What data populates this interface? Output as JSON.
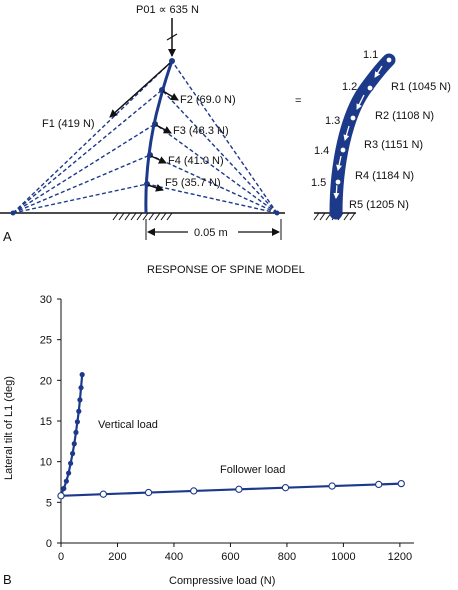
{
  "panel_a": {
    "panel_label": "A",
    "top_load": "P01 ∝ 635 N",
    "f1": "F1 (419 N)",
    "forces": [
      "F2 (69.0 N)",
      "F3 (48.3 N)",
      "F4 (41.0 N)",
      "F5 (35.7 N)"
    ],
    "equals": "=",
    "distance": "0.05 m",
    "levels": [
      "1.1",
      "1.2",
      "1.3",
      "1.4",
      "1.5"
    ],
    "reactions": [
      "R1 (1045 N)",
      "R2 (1108 N)",
      "R3 (1151 N)",
      "R4 (1184 N)",
      "R5 (1205 N)"
    ]
  },
  "panel_b": {
    "panel_label": "B",
    "title": "RESPONSE OF SPINE MODEL",
    "series_labels": {
      "vertical": "Vertical load",
      "follower": "Follower load"
    }
  },
  "colors": {
    "spine": "#1d3a8a",
    "axis": "#111111"
  },
  "chart_data": {
    "type": "line",
    "title": "RESPONSE OF SPINE MODEL",
    "xlabel": "Compressive load (N)",
    "ylabel": "Lateral tilt of L1 (deg)",
    "xlim": [
      0,
      1250
    ],
    "ylim": [
      0,
      30
    ],
    "xticks": [
      0,
      200,
      400,
      600,
      800,
      1000,
      1200
    ],
    "yticks": [
      0,
      5,
      10,
      15,
      20,
      25,
      30
    ],
    "grid": false,
    "series": [
      {
        "name": "Vertical load",
        "marker": "filled",
        "x": [
          0,
          10,
          19,
          27,
          34,
          41,
          47,
          53,
          58,
          63,
          67,
          71,
          75
        ],
        "y": [
          5.9,
          6.7,
          7.6,
          8.6,
          9.8,
          11.0,
          12.2,
          13.6,
          14.9,
          16.2,
          17.6,
          19.1,
          20.7
        ]
      },
      {
        "name": "Follower load",
        "marker": "open",
        "x": [
          0,
          150,
          310,
          470,
          630,
          795,
          960,
          1125,
          1205
        ],
        "y": [
          5.8,
          6.0,
          6.2,
          6.4,
          6.6,
          6.8,
          7.0,
          7.2,
          7.3
        ]
      }
    ]
  }
}
